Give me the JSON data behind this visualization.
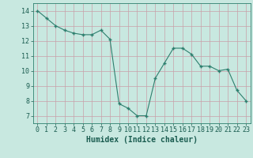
{
  "x": [
    0,
    1,
    2,
    3,
    4,
    5,
    6,
    7,
    8,
    9,
    10,
    11,
    12,
    13,
    14,
    15,
    16,
    17,
    18,
    19,
    20,
    21,
    22,
    23
  ],
  "y": [
    14.0,
    13.5,
    13.0,
    12.7,
    12.5,
    12.4,
    12.4,
    12.7,
    12.1,
    7.8,
    7.5,
    7.0,
    7.0,
    9.5,
    10.5,
    11.5,
    11.5,
    11.1,
    10.3,
    10.3,
    10.0,
    10.1,
    8.7,
    8.0
  ],
  "xlabel": "Humidex (Indice chaleur)",
  "xlim": [
    -0.5,
    23.5
  ],
  "ylim": [
    6.5,
    14.5
  ],
  "yticks": [
    7,
    8,
    9,
    10,
    11,
    12,
    13,
    14
  ],
  "xticks": [
    0,
    1,
    2,
    3,
    4,
    5,
    6,
    7,
    8,
    9,
    10,
    11,
    12,
    13,
    14,
    15,
    16,
    17,
    18,
    19,
    20,
    21,
    22,
    23
  ],
  "line_color": "#2d7f6e",
  "marker_color": "#2d7f6e",
  "bg_color": "#c8e8e0",
  "grid_color": "#c8a0a8",
  "axis_color": "#2d7f6e",
  "label_color": "#1a5c50",
  "tick_color": "#1a5c50",
  "font_size": 6.0,
  "xlabel_fontsize": 7.0
}
